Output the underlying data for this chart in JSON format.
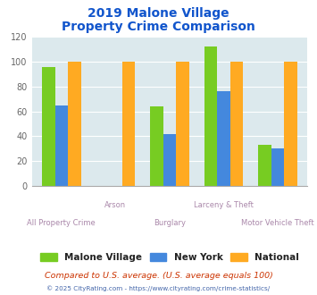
{
  "title_line1": "2019 Malone Village",
  "title_line2": "Property Crime Comparison",
  "categories": [
    "All Property Crime",
    "Arson",
    "Burglary",
    "Larceny & Theft",
    "Motor Vehicle Theft"
  ],
  "malone_village": [
    96,
    null,
    64,
    112,
    33
  ],
  "new_york": [
    65,
    null,
    42,
    76,
    30
  ],
  "national": [
    100,
    100,
    100,
    100,
    100
  ],
  "color_malone": "#77cc22",
  "color_newyork": "#4488dd",
  "color_national": "#ffaa22",
  "ylim": [
    0,
    120
  ],
  "yticks": [
    0,
    20,
    40,
    60,
    80,
    100,
    120
  ],
  "xlabel_color": "#aa88aa",
  "title_color": "#1155cc",
  "legend_labels": [
    "Malone Village",
    "New York",
    "National"
  ],
  "footnote1": "Compared to U.S. average. (U.S. average equals 100)",
  "footnote2": "© 2025 CityRating.com - https://www.cityrating.com/crime-statistics/",
  "bg_color": "#dce9ed",
  "fig_bg": "#ffffff",
  "bar_width": 0.24,
  "group_positions": [
    0,
    1,
    2,
    3,
    4
  ],
  "label_rows": [
    "bottom",
    "top",
    "bottom",
    "top",
    "bottom"
  ]
}
